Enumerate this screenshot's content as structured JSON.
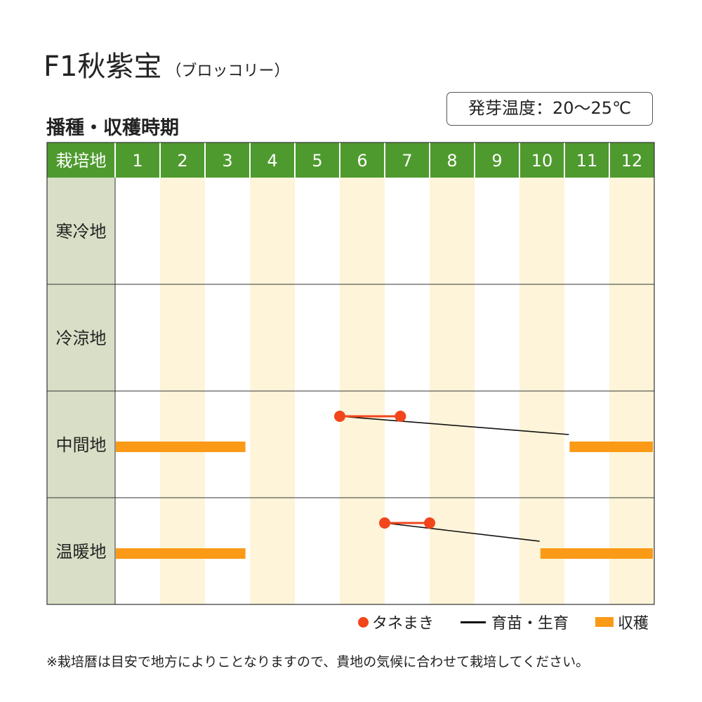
{
  "header": {
    "title": "F1秋紫宝",
    "subtitle": "（ブロッコリー）",
    "section_title": "播種・収穫時期",
    "germination_badge": "発芽温度：20～25℃"
  },
  "colors": {
    "header_green": "#4e9a2e",
    "region_cell": "#d9dfc6",
    "stripe": "#fdf4d9",
    "sowing": "#f2451b",
    "growing": "#111111",
    "harvest": "#fa9a17"
  },
  "legend": {
    "sowing": "タネまき",
    "growing": "育苗・生育",
    "harvest": "収穫"
  },
  "footnote": "※栽培暦は目安で地方によりことなりますので、貴地の気候に合わせて栽培してください。",
  "chart_data": {
    "type": "gantt",
    "corner_label": "栽培地",
    "months": [
      "1",
      "2",
      "3",
      "4",
      "5",
      "6",
      "7",
      "8",
      "9",
      "10",
      "11",
      "12"
    ],
    "regions": [
      {
        "name": "寒冷地",
        "sowing": null,
        "growing": null,
        "harvest": []
      },
      {
        "name": "冷涼地",
        "sowing": null,
        "growing": null,
        "harvest": []
      },
      {
        "name": "中間地",
        "sowing": [
          6.0,
          7.35
        ],
        "growing": [
          7.35,
          11.1
        ],
        "harvest": [
          [
            1.0,
            3.9
          ],
          [
            11.1,
            13.0
          ]
        ]
      },
      {
        "name": "温暖地",
        "sowing": [
          7.0,
          8.0
        ],
        "growing": [
          8.0,
          10.45
        ],
        "harvest": [
          [
            1.0,
            3.9
          ],
          [
            10.45,
            13.0
          ]
        ]
      }
    ]
  }
}
